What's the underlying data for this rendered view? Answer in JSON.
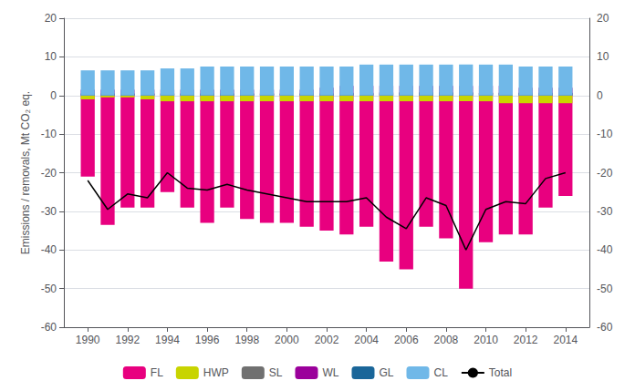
{
  "chart_data": {
    "type": "bar",
    "x": [
      1990,
      1991,
      1992,
      1993,
      1994,
      1995,
      1996,
      1997,
      1998,
      1999,
      2000,
      2001,
      2002,
      2003,
      2004,
      2005,
      2006,
      2007,
      2008,
      2009,
      2010,
      2011,
      2012,
      2013,
      2014
    ],
    "xlim": [
      1988.8,
      2015.2
    ],
    "xticks": [
      1990,
      1992,
      1994,
      1996,
      1998,
      2000,
      2002,
      2004,
      2006,
      2008,
      2010,
      2012,
      2014
    ],
    "ylabel": "Emissions / removals, Mt CO₂ eq.",
    "ylim": [
      -60,
      20
    ],
    "yticks": [
      -60,
      -50,
      -40,
      -30,
      -20,
      -10,
      0,
      10,
      20
    ],
    "y2lim": [
      -60,
      20
    ],
    "y2ticks": [
      -60,
      -50,
      -40,
      -30,
      -20,
      -10,
      0,
      10,
      20
    ],
    "stacked": true,
    "grid": true,
    "legend": "bottom",
    "series": [
      {
        "name": "FL",
        "color": "#e8007f",
        "values": [
          -21.0,
          -33.5,
          -29.0,
          -29.0,
          -25.0,
          -29.0,
          -33.0,
          -29.0,
          -32.0,
          -33.0,
          -33.0,
          -34.0,
          -35.0,
          -36.0,
          -34.0,
          -43.0,
          -45.0,
          -34.0,
          -37.0,
          -50.0,
          -38.0,
          -36.0,
          -36.0,
          -29.0,
          -26.0
        ]
      },
      {
        "name": "HWP",
        "color": "#c8d400",
        "values": [
          -1.0,
          -0.5,
          -0.5,
          -1.0,
          -1.5,
          -1.5,
          -1.5,
          -1.5,
          -1.5,
          -1.5,
          -1.5,
          -1.5,
          -1.5,
          -1.5,
          -1.5,
          -1.5,
          -1.5,
          -1.5,
          -1.5,
          -1.5,
          -1.5,
          -2.0,
          -2.0,
          -2.0,
          -2.0
        ]
      },
      {
        "name": "SL",
        "color": "#707070",
        "values": [
          0.5,
          0.5,
          0.5,
          0.5,
          0.5,
          0.5,
          0.5,
          0.5,
          0.5,
          0.5,
          0.5,
          0.5,
          0.5,
          0.5,
          0.5,
          0.5,
          0.7,
          0.7,
          0.7,
          0.7,
          0.7,
          0.7,
          0.7,
          0.6,
          0.6
        ]
      },
      {
        "name": "WL",
        "color": "#9b009b",
        "values": [
          1.5,
          1.5,
          1.5,
          1.5,
          1.5,
          1.5,
          1.5,
          1.5,
          1.5,
          1.5,
          1.5,
          1.5,
          2.0,
          2.5,
          2.5,
          2.5,
          2.5,
          2.5,
          2.5,
          2.5,
          2.5,
          2.5,
          2.0,
          2.0,
          2.0
        ]
      },
      {
        "name": "GL",
        "color": "#1a6699",
        "values": [
          0.5,
          0.5,
          0.5,
          0.5,
          0.5,
          0.5,
          0.5,
          0.5,
          0.5,
          0.5,
          0.5,
          0.5,
          0.5,
          0.7,
          0.7,
          0.8,
          0.8,
          0.8,
          0.8,
          0.8,
          0.7,
          0.7,
          0.7,
          0.7,
          0.7
        ]
      },
      {
        "name": "CL",
        "color": "#70b8e8",
        "values": [
          6.5,
          6.5,
          6.5,
          6.5,
          7.0,
          7.0,
          7.5,
          7.5,
          7.5,
          7.5,
          7.5,
          7.5,
          7.5,
          7.5,
          8.0,
          8.0,
          8.0,
          8.0,
          8.0,
          8.0,
          8.0,
          8.0,
          7.5,
          7.5,
          7.5
        ]
      },
      {
        "name": "Total",
        "type": "line",
        "color": "black",
        "values": [
          -22.0,
          -29.5,
          -25.5,
          -26.5,
          -20.0,
          -24.0,
          -24.5,
          -23.0,
          -24.5,
          -25.5,
          -26.5,
          -27.5,
          -27.5,
          -27.5,
          -26.5,
          -31.5,
          -34.5,
          -26.5,
          -28.5,
          -40.0,
          -29.5,
          -27.5,
          -28.0,
          -21.5,
          -20.0
        ]
      }
    ]
  }
}
